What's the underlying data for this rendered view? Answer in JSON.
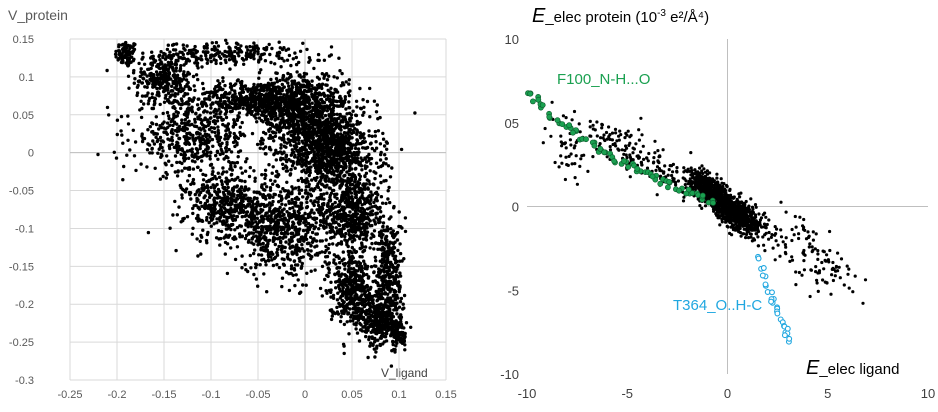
{
  "chart_data": [
    {
      "type": "scatter",
      "ylabel": "V_protein",
      "xlabel": "V_ligand",
      "xlim": [
        -0.25,
        0.15
      ],
      "ylim": [
        -0.3,
        0.15
      ],
      "x_ticks": [
        "-0.25",
        "-0.2",
        "-0.15",
        "-0.1",
        "-0.05",
        "0",
        "0.05",
        "0.1",
        "0.15"
      ],
      "y_ticks": [
        "0.15",
        "0.1",
        "0.05",
        "0",
        "-0.05",
        "-0.1",
        "-0.15",
        "-0.2",
        "-0.25",
        "-0.3"
      ],
      "grid": true,
      "series": [
        {
          "color": "#000000",
          "regions": [
            {
              "center": [
                -0.19,
                0.13
              ],
              "spread": [
                0.01,
                0.015
              ],
              "count": 80
            },
            {
              "center": [
                -0.15,
                0.1
              ],
              "spread": [
                0.025,
                0.03
              ],
              "count": 300
            },
            {
              "center": [
                -0.08,
                0.13
              ],
              "spread": [
                0.06,
                0.012
              ],
              "count": 220
            },
            {
              "center": [
                -0.05,
                0.07
              ],
              "spread": [
                0.06,
                0.02
              ],
              "count": 600
            },
            {
              "center": [
                0.0,
                0.05
              ],
              "spread": [
                0.04,
                0.05
              ],
              "count": 900
            },
            {
              "center": [
                0.03,
                0.0
              ],
              "spread": [
                0.04,
                0.04
              ],
              "count": 800
            },
            {
              "center": [
                -0.12,
                0.02
              ],
              "spread": [
                0.05,
                0.04
              ],
              "count": 500
            },
            {
              "center": [
                -0.08,
                -0.07
              ],
              "spread": [
                0.04,
                0.04
              ],
              "count": 500
            },
            {
              "center": [
                -0.02,
                -0.1
              ],
              "spread": [
                0.04,
                0.05
              ],
              "count": 600
            },
            {
              "center": [
                0.05,
                -0.08
              ],
              "spread": [
                0.03,
                0.05
              ],
              "count": 600
            },
            {
              "center": [
                0.05,
                -0.18
              ],
              "spread": [
                0.02,
                0.04
              ],
              "count": 400
            },
            {
              "center": [
                0.08,
                -0.22
              ],
              "spread": [
                0.02,
                0.03
              ],
              "count": 350
            },
            {
              "center": [
                0.09,
                -0.15
              ],
              "spread": [
                0.012,
                0.05
              ],
              "count": 250
            },
            {
              "center": [
                0.1,
                -0.24
              ],
              "spread": [
                0.008,
                0.015
              ],
              "count": 80
            }
          ]
        }
      ]
    },
    {
      "type": "scatter",
      "title_prefix": "E",
      "title_rest": "_elec protein (10",
      "title_exp": "-3",
      "title_unit": " e²/Å⁴)",
      "xlabel_prefix": "E",
      "xlabel_rest": "_elec ligand",
      "xlim": [
        -10,
        10
      ],
      "ylim": [
        -10,
        10
      ],
      "x_ticks": [
        "-10",
        "-5",
        "0",
        "5",
        "10"
      ],
      "y_ticks": [
        "10",
        "05",
        "0",
        "-5",
        "-10"
      ],
      "grid": false,
      "annotations": [
        {
          "text": "F100_N-H...O",
          "color": "#1aa050"
        },
        {
          "text": "T364_O..H-C",
          "color": "#20a7e0"
        }
      ],
      "series": [
        {
          "color": "#000000",
          "regions": [
            {
              "center": [
                -4.5,
                3.0
              ],
              "spread": [
                2.5,
                1.0
              ],
              "count": 180
            },
            {
              "center": [
                -1.0,
                1.0
              ],
              "spread": [
                0.8,
                0.7
              ],
              "count": 500
            },
            {
              "center": [
                0.5,
                -0.5
              ],
              "spread": [
                1.0,
                0.8
              ],
              "count": 600
            },
            {
              "center": [
                4.0,
                -2.8
              ],
              "spread": [
                2.2,
                1.5
              ],
              "count": 120
            },
            {
              "center": [
                -8.0,
                3.5
              ],
              "spread": [
                1.2,
                1.2
              ],
              "count": 40
            }
          ]
        },
        {
          "name": "F100_N-H...O",
          "color": "#1aa050",
          "x": [
            -10.0,
            -9.6,
            -9.2,
            -8.8,
            -8.4,
            -8.0,
            -7.6,
            -7.2,
            -6.8,
            -6.4,
            -6.0,
            -5.6,
            -5.2,
            -4.8,
            -4.4,
            -4.0,
            -3.6,
            -3.2,
            -2.8,
            -2.4,
            -2.0,
            -1.6,
            -1.2,
            -0.8
          ],
          "y": [
            6.8,
            6.4,
            6.0,
            5.4,
            5.0,
            4.8,
            4.4,
            4.0,
            3.7,
            3.4,
            3.1,
            2.8,
            2.6,
            2.4,
            2.2,
            1.9,
            1.7,
            1.5,
            1.3,
            1.1,
            0.9,
            0.7,
            0.5,
            0.2
          ]
        },
        {
          "name": "T364_O..H-C",
          "color": "#20a7e0",
          "x": [
            1.5,
            1.7,
            1.9,
            2.0,
            2.1,
            2.2,
            2.3,
            2.5,
            2.6,
            2.7,
            2.8,
            2.9,
            3.0,
            3.1
          ],
          "y": [
            -3.0,
            -3.6,
            -4.1,
            -4.6,
            -5.0,
            -5.4,
            -5.8,
            -6.1,
            -6.4,
            -6.8,
            -7.1,
            -7.4,
            -7.7,
            -8.0
          ]
        }
      ]
    }
  ]
}
